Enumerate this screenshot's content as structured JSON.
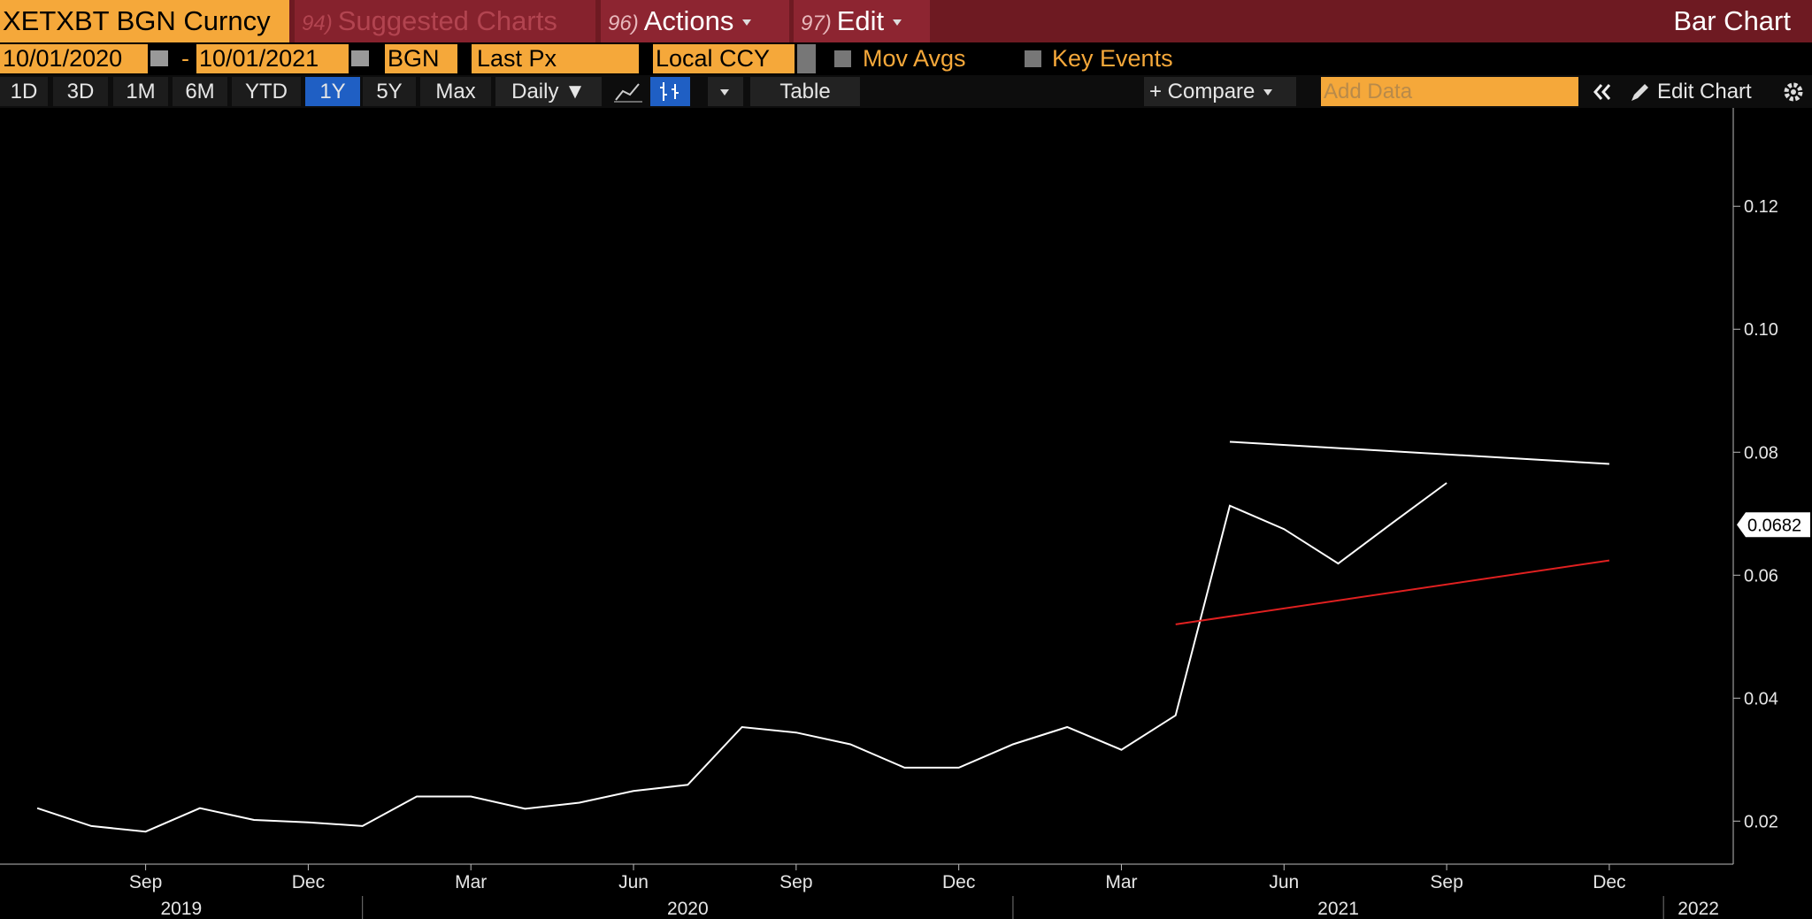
{
  "toolbar": {
    "row1": {
      "security": "XETXBT BGN Curncy",
      "suggested_num": "94)",
      "suggested": "Suggested Charts",
      "actions_num": "96)",
      "actions": "Actions",
      "edit_num": "97)",
      "edit": "Edit",
      "chart_kind": "Bar Chart"
    },
    "row2": {
      "start_date": "10/01/2020",
      "dash": "-",
      "end_date": "10/01/2021",
      "source": "BGN",
      "field": "Last Px",
      "currency": "Local CCY",
      "mov_avgs": "Mov Avgs",
      "key_events": "Key Events"
    },
    "row3": {
      "periods": [
        "1D",
        "3D",
        "1M",
        "6M",
        "YTD",
        "1Y",
        "5Y",
        "Max"
      ],
      "frequency": "Daily ▼",
      "table": "Table",
      "compare": "+ Compare",
      "add_data": "Add Data",
      "edit_chart": "Edit Chart"
    }
  },
  "chart_data": {
    "type": "line",
    "color": "#ffffff",
    "x": [
      "2019-07",
      "2019-08",
      "2019-09",
      "2019-10",
      "2019-11",
      "2019-12",
      "2020-01",
      "2020-02",
      "2020-03",
      "2020-04",
      "2020-05",
      "2020-06",
      "2020-07",
      "2020-08",
      "2020-09",
      "2020-10",
      "2020-11",
      "2020-12",
      "2021-01",
      "2021-02",
      "2021-03",
      "2021-04",
      "2021-05",
      "2021-06",
      "2021-07",
      "2021-08",
      "2021-09"
    ],
    "values": [
      0.0221,
      0.0192,
      0.0183,
      0.0221,
      0.0202,
      0.0198,
      0.0192,
      0.024,
      0.024,
      0.022,
      0.023,
      0.0249,
      0.0259,
      0.0353,
      0.0344,
      0.0325,
      0.0287,
      0.0287,
      0.0325,
      0.0353,
      0.0316,
      0.0372,
      0.0713,
      0.0675,
      0.0619,
      0.0685,
      0.075
    ],
    "last_price": 0.0682,
    "ylim": [
      0.013,
      0.136
    ],
    "yticks": [
      0.02,
      0.04,
      0.06,
      0.08,
      {
        "value": 0.1,
        "label": "0.10"
      },
      0.12
    ],
    "xticks": [
      {
        "value": "2019-09",
        "label": "Sep"
      },
      {
        "value": "2019-12",
        "label": "Dec"
      },
      {
        "value": "2020-03",
        "label": "Mar"
      },
      {
        "value": "2020-06",
        "label": "Jun"
      },
      {
        "value": "2020-09",
        "label": "Sep"
      },
      {
        "value": "2020-12",
        "label": "Dec"
      },
      {
        "value": "2021-03",
        "label": "Mar"
      },
      {
        "value": "2021-06",
        "label": "Jun"
      },
      {
        "value": "2021-09",
        "label": "Sep"
      },
      {
        "value": "2021-12",
        "label": "Dec"
      }
    ],
    "years": [
      2019,
      2020,
      2021,
      2022
    ],
    "trendlines": [
      {
        "x": [
          "2021-05",
          "2021-12"
        ],
        "values": [
          0.0817,
          0.0781
        ],
        "color": "#ffffff"
      },
      {
        "x": [
          "2021-04",
          "2021-12"
        ],
        "values": [
          0.052,
          0.0624
        ],
        "color": "#e02020"
      }
    ]
  }
}
